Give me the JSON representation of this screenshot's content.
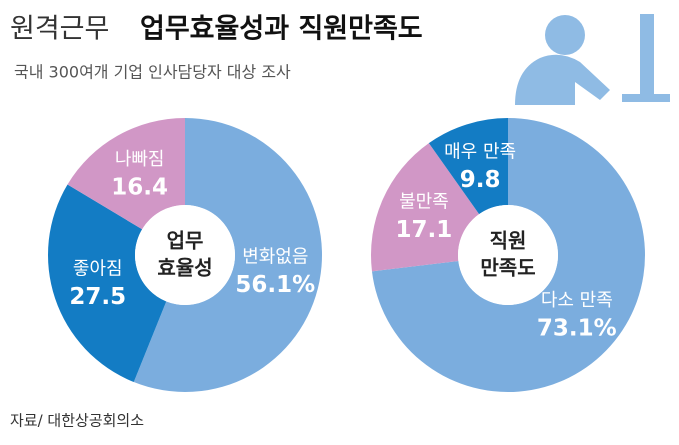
{
  "header": {
    "title_light": "원격근무",
    "title_bold": "업무효율성과 직원만족도",
    "subtitle": "국내 300여개 기업 인사담당자 대상 조사"
  },
  "source": "자료/ 대한상공회의소",
  "chart_data": [
    {
      "type": "pie",
      "donut": true,
      "center_label": [
        "업무",
        "효율성"
      ],
      "categories": [
        "변화없음",
        "좋아짐",
        "나빠짐"
      ],
      "values": [
        56.1,
        27.5,
        16.4
      ],
      "value_labels": [
        "56.1%",
        "27.5",
        "16.4"
      ],
      "colors": [
        "#7badde",
        "#137cc4",
        "#d197c6"
      ]
    },
    {
      "type": "pie",
      "donut": true,
      "center_label": [
        "직원",
        "만족도"
      ],
      "categories": [
        "다소 만족",
        "불만족",
        "매우 만족"
      ],
      "values": [
        73.1,
        17.1,
        9.8
      ],
      "value_labels": [
        "73.1%",
        "17.1",
        "9.8"
      ],
      "colors": [
        "#7badde",
        "#d197c6",
        "#137cc4"
      ]
    }
  ]
}
